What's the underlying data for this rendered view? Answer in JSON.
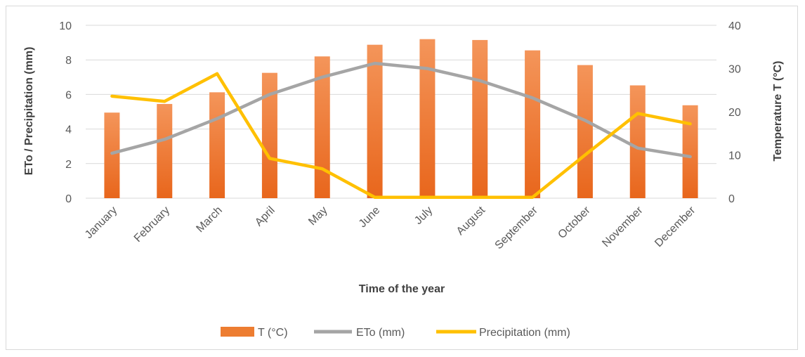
{
  "chart_data": {
    "type": "bar+line",
    "categories": [
      "January",
      "February",
      "March",
      "April",
      "May",
      "June",
      "July",
      "August",
      "September",
      "October",
      "November",
      "December"
    ],
    "series": [
      {
        "name": "T (°C)",
        "type": "bar",
        "axis": "right",
        "color": "#ED7D31",
        "values": [
          19.8,
          21.8,
          24.5,
          29.0,
          32.8,
          35.5,
          36.8,
          36.6,
          34.2,
          30.8,
          26.1,
          21.5
        ]
      },
      {
        "name": "ETo (mm)",
        "type": "line",
        "axis": "left",
        "color": "#A5A5A5",
        "values": [
          2.6,
          3.4,
          4.6,
          6.0,
          7.0,
          7.8,
          7.5,
          6.8,
          5.8,
          4.5,
          2.9,
          2.4
        ]
      },
      {
        "name": "Precipitation (mm)",
        "type": "line",
        "axis": "left",
        "color": "#FFC000",
        "values": [
          5.9,
          5.6,
          7.2,
          2.3,
          1.7,
          0.05,
          0.05,
          0.05,
          0.05,
          2.5,
          4.9,
          4.3
        ]
      }
    ],
    "xlabel": "Time of the year",
    "ylabel_left": "ETo /  Precipitation (mm)",
    "ylabel_right": "Temperature T (°C)",
    "ylim_left": [
      0,
      10
    ],
    "yticks_left": [
      "0",
      "2",
      "4",
      "6",
      "8",
      "10"
    ],
    "ylim_right": [
      0,
      40
    ],
    "yticks_right": [
      "0",
      "10",
      "20",
      "30",
      "40"
    ],
    "grid": true,
    "legend_position": "bottom"
  }
}
